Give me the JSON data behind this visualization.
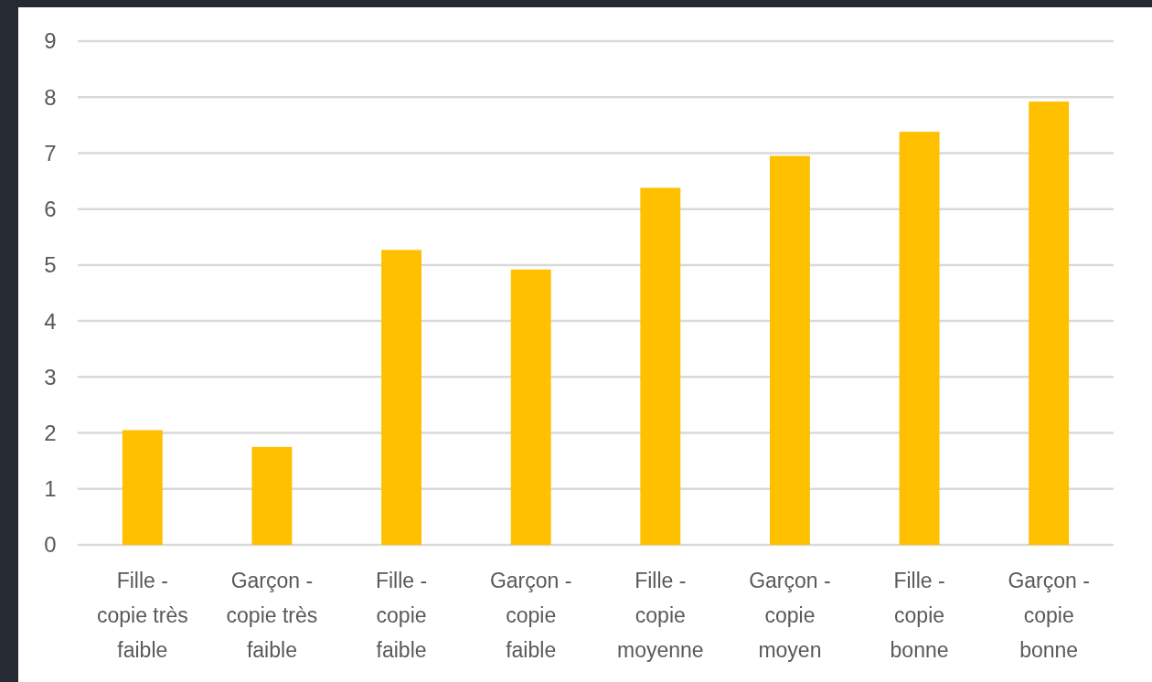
{
  "chart_data": {
    "type": "bar",
    "categories": [
      "Fille - copie très faible",
      "Garçon - copie très faible",
      "Fille - copie faible",
      "Garçon - copie faible",
      "Fille - copie moyenne",
      "Garçon - copie moyen",
      "Fille - copie bonne",
      "Garçon - copie bonne"
    ],
    "values": [
      2.05,
      1.75,
      5.27,
      4.92,
      6.38,
      6.95,
      7.38,
      7.92
    ],
    "color": "#ffc000",
    "ylim": [
      0,
      9
    ],
    "yticks": [
      0,
      1,
      2,
      3,
      4,
      5,
      6,
      7,
      8,
      9
    ],
    "grid": "y"
  }
}
